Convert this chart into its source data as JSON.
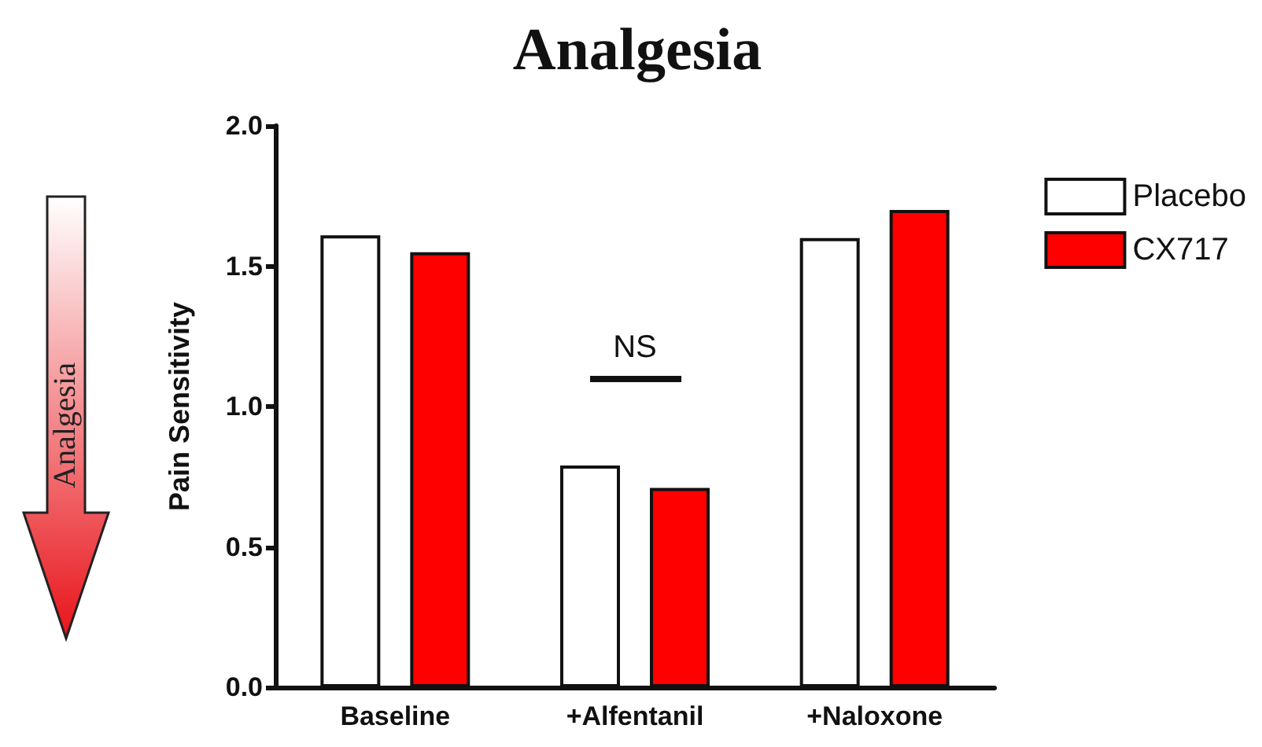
{
  "chart_data": {
    "type": "bar",
    "title": "Analgesia",
    "ylabel": "Pain Sensitivity",
    "categories": [
      "Baseline",
      "+Alfentanil",
      "+Naloxone"
    ],
    "series": [
      {
        "name": "Placebo",
        "color": "#ffffff",
        "values": [
          1.61,
          0.79,
          1.6
        ]
      },
      {
        "name": "CX717",
        "color": "#ff0000",
        "values": [
          1.55,
          0.71,
          1.7
        ]
      }
    ],
    "ylim": [
      0,
      2
    ],
    "yticks": [
      {
        "value": 0,
        "label": "0.0"
      },
      {
        "value": 0.5,
        "label": "0.5"
      },
      {
        "value": 1,
        "label": "1.0"
      },
      {
        "value": 1.5,
        "label": "1.5"
      },
      {
        "value": 2,
        "label": "2.0"
      }
    ],
    "annotations": [
      "Analgesia",
      "NS"
    ],
    "grid": false,
    "legend": "top right"
  }
}
